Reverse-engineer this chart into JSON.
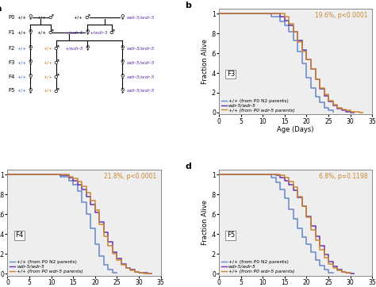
{
  "color_N2": "#6688cc",
  "color_wdr5": "#6633aa",
  "color_rescue": "#cc8833",
  "color_blue_label": "#4466bb",
  "color_orange_label": "#cc7722",
  "color_purple_label": "#6633aa",
  "panel_b": {
    "label": "F3",
    "stat": "19.6%, p<0.0001",
    "N2": {
      "x": [
        0,
        10,
        12,
        14,
        15,
        16,
        17,
        18,
        19,
        20,
        21,
        22,
        23,
        24,
        25,
        26
      ],
      "y": [
        1,
        1,
        0.97,
        0.92,
        0.88,
        0.82,
        0.73,
        0.62,
        0.5,
        0.35,
        0.25,
        0.16,
        0.1,
        0.05,
        0.02,
        0
      ]
    },
    "wdr5": {
      "x": [
        0,
        12,
        14,
        15,
        16,
        17,
        18,
        19,
        20,
        21,
        22,
        23,
        24,
        25,
        26,
        27,
        28,
        29,
        30,
        31
      ],
      "y": [
        1,
        1,
        0.97,
        0.93,
        0.88,
        0.82,
        0.73,
        0.63,
        0.54,
        0.44,
        0.34,
        0.24,
        0.17,
        0.11,
        0.07,
        0.04,
        0.02,
        0.01,
        0,
        0
      ]
    },
    "rescue": {
      "x": [
        0,
        14,
        15,
        16,
        17,
        18,
        19,
        20,
        21,
        22,
        23,
        24,
        25,
        26,
        27,
        28,
        29,
        30,
        31,
        32,
        33
      ],
      "y": [
        1,
        1,
        0.97,
        0.9,
        0.82,
        0.71,
        0.62,
        0.54,
        0.44,
        0.34,
        0.25,
        0.18,
        0.12,
        0.08,
        0.05,
        0.03,
        0.02,
        0.01,
        0.005,
        0,
        0
      ]
    }
  },
  "panel_c": {
    "label": "F4",
    "stat": "21.8%, p<0.0001",
    "N2": {
      "x": [
        0,
        10,
        12,
        14,
        15,
        16,
        17,
        18,
        19,
        20,
        21,
        22,
        23,
        24,
        25
      ],
      "y": [
        1,
        1,
        0.98,
        0.94,
        0.9,
        0.83,
        0.72,
        0.6,
        0.46,
        0.3,
        0.18,
        0.09,
        0.04,
        0.01,
        0
      ]
    },
    "wdr5": {
      "x": [
        0,
        10,
        12,
        14,
        15,
        16,
        17,
        18,
        19,
        20,
        21,
        22,
        23,
        24,
        25,
        26,
        27,
        28,
        29,
        30,
        31,
        32,
        33
      ],
      "y": [
        1,
        1,
        0.99,
        0.97,
        0.94,
        0.9,
        0.85,
        0.78,
        0.7,
        0.62,
        0.52,
        0.42,
        0.32,
        0.22,
        0.15,
        0.1,
        0.06,
        0.04,
        0.02,
        0.01,
        0.005,
        0.002,
        0
      ]
    },
    "rescue": {
      "x": [
        0,
        10,
        12,
        14,
        15,
        16,
        17,
        18,
        19,
        20,
        21,
        22,
        23,
        24,
        25,
        26,
        27,
        28,
        29,
        30,
        31,
        32,
        33
      ],
      "y": [
        1,
        1,
        1,
        0.98,
        0.96,
        0.93,
        0.88,
        0.82,
        0.74,
        0.64,
        0.5,
        0.38,
        0.28,
        0.2,
        0.14,
        0.09,
        0.06,
        0.03,
        0.015,
        0.008,
        0.004,
        0.002,
        0
      ]
    }
  },
  "panel_d": {
    "label": "F5",
    "stat": "6.8%, p=0.1198",
    "N2": {
      "x": [
        0,
        10,
        12,
        13,
        14,
        15,
        16,
        17,
        18,
        19,
        20,
        21,
        22,
        23,
        24,
        25,
        26
      ],
      "y": [
        1,
        1,
        0.97,
        0.92,
        0.85,
        0.76,
        0.65,
        0.55,
        0.46,
        0.37,
        0.3,
        0.22,
        0.14,
        0.08,
        0.04,
        0.01,
        0
      ]
    },
    "wdr5": {
      "x": [
        0,
        10,
        12,
        13,
        14,
        15,
        16,
        17,
        18,
        19,
        20,
        21,
        22,
        23,
        24,
        25,
        26,
        27,
        28,
        29,
        30,
        31
      ],
      "y": [
        1,
        1,
        1,
        0.99,
        0.97,
        0.94,
        0.9,
        0.84,
        0.77,
        0.68,
        0.58,
        0.48,
        0.38,
        0.28,
        0.19,
        0.12,
        0.07,
        0.04,
        0.02,
        0.01,
        0.003,
        0
      ]
    },
    "rescue": {
      "x": [
        0,
        10,
        12,
        13,
        14,
        15,
        16,
        17,
        18,
        19,
        20,
        21,
        22,
        23,
        24,
        25,
        26,
        27,
        28,
        29,
        30
      ],
      "y": [
        1,
        1,
        1,
        1,
        0.99,
        0.97,
        0.93,
        0.87,
        0.78,
        0.68,
        0.57,
        0.44,
        0.34,
        0.24,
        0.16,
        0.1,
        0.06,
        0.03,
        0.015,
        0.005,
        0
      ]
    }
  },
  "legend_labels": [
    "+/+ (from P0 N2 parents)",
    "wdr-5/wdr-5",
    "+/+ (from P0 wdr-5 parents)"
  ],
  "xlabel": "Age (Days)",
  "ylabel": "Fraction Alive",
  "yticks": [
    0,
    0.2,
    0.4,
    0.6,
    0.8,
    1.0
  ],
  "ytick_labels": [
    "0",
    ".2",
    ".4",
    ".6",
    ".8",
    "1"
  ],
  "xticks": [
    0,
    5,
    10,
    15,
    20,
    25,
    30,
    35
  ],
  "background_color": "#eeeeee"
}
